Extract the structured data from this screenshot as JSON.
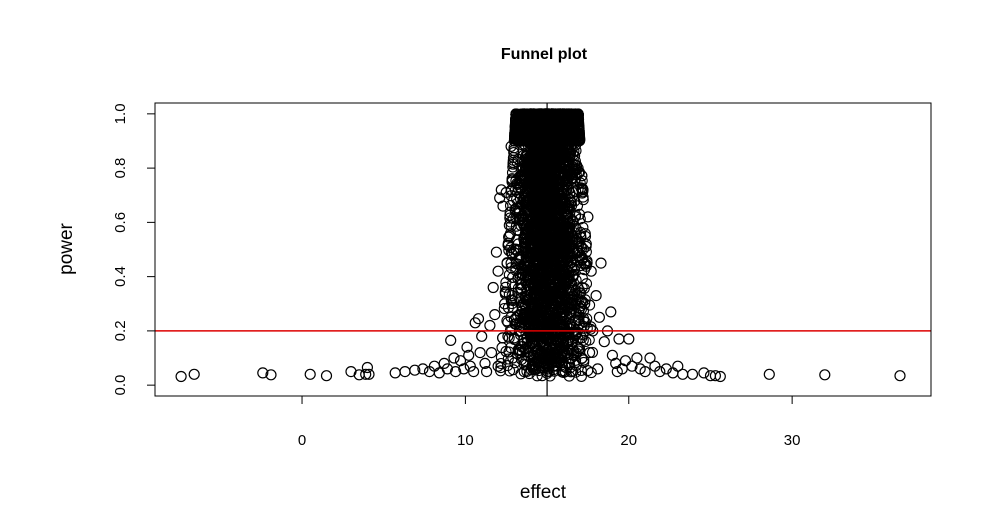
{
  "chart_data": {
    "type": "scatter",
    "title": "Funnel plot",
    "xlabel": "effect",
    "ylabel": "power",
    "xlim": [
      -9.0,
      38.5
    ],
    "ylim": [
      -0.04,
      1.04
    ],
    "x_ticks": [
      0,
      10,
      20,
      30
    ],
    "y_ticks": [
      0.0,
      0.2,
      0.4,
      0.6,
      0.8,
      1.0
    ],
    "x_tick_labels": [
      "0",
      "10",
      "20",
      "30"
    ],
    "y_tick_labels": [
      "0.0",
      "0.2",
      "0.4",
      "0.6",
      "0.8",
      "1.0"
    ],
    "grid": false,
    "legend": null,
    "marker": "open-circle",
    "marker_color": "#000000",
    "vertical_reference_line": {
      "x": 15,
      "color": "#000000"
    },
    "horizontal_reference_line": {
      "y": 0.2,
      "color": "#dd0000"
    },
    "series": [
      {
        "points": [
          [
            -7.4,
            0.032
          ],
          [
            -6.6,
            0.04
          ],
          [
            -2.4,
            0.045
          ],
          [
            -1.9,
            0.038
          ],
          [
            0.5,
            0.04
          ],
          [
            1.5,
            0.035
          ],
          [
            3.0,
            0.05
          ],
          [
            3.5,
            0.038
          ],
          [
            3.9,
            0.04
          ],
          [
            4.0,
            0.065
          ],
          [
            4.1,
            0.04
          ],
          [
            5.7,
            0.045
          ],
          [
            6.3,
            0.05
          ],
          [
            6.9,
            0.055
          ],
          [
            7.4,
            0.06
          ],
          [
            7.8,
            0.05
          ],
          [
            8.1,
            0.07
          ],
          [
            8.4,
            0.045
          ],
          [
            8.7,
            0.08
          ],
          [
            8.9,
            0.06
          ],
          [
            9.1,
            0.165
          ],
          [
            9.3,
            0.1
          ],
          [
            9.4,
            0.05
          ],
          [
            9.7,
            0.09
          ],
          [
            9.9,
            0.06
          ],
          [
            10.1,
            0.14
          ],
          [
            10.2,
            0.11
          ],
          [
            10.3,
            0.07
          ],
          [
            10.5,
            0.05
          ],
          [
            10.6,
            0.23
          ],
          [
            10.8,
            0.245
          ],
          [
            10.9,
            0.12
          ],
          [
            11.0,
            0.18
          ],
          [
            11.2,
            0.08
          ],
          [
            11.3,
            0.05
          ],
          [
            11.5,
            0.22
          ],
          [
            11.6,
            0.12
          ],
          [
            11.7,
            0.36
          ],
          [
            11.8,
            0.26
          ],
          [
            11.9,
            0.49
          ],
          [
            12.0,
            0.42
          ],
          [
            12.0,
            0.07
          ],
          [
            12.1,
            0.69
          ],
          [
            12.2,
            0.72
          ],
          [
            12.3,
            0.66
          ],
          [
            12.4,
            0.3
          ],
          [
            12.5,
            0.71
          ],
          [
            12.6,
            0.18
          ],
          [
            12.7,
            0.55
          ],
          [
            12.8,
            0.88
          ],
          [
            12.8,
            0.45
          ],
          [
            12.9,
            0.1
          ],
          [
            13.0,
            0.24
          ],
          [
            13.1,
            0.64
          ],
          [
            13.2,
            0.74
          ],
          [
            13.3,
            0.12
          ],
          [
            13.4,
            0.37
          ],
          [
            13.6,
            0.05
          ],
          [
            13.8,
            0.16
          ],
          [
            17.2,
            0.72
          ],
          [
            17.3,
            0.3
          ],
          [
            17.4,
            0.52
          ],
          [
            17.5,
            0.62
          ],
          [
            17.6,
            0.12
          ],
          [
            17.7,
            0.42
          ],
          [
            17.8,
            0.2
          ],
          [
            18.0,
            0.33
          ],
          [
            18.1,
            0.06
          ],
          [
            18.2,
            0.25
          ],
          [
            18.3,
            0.45
          ],
          [
            18.5,
            0.16
          ],
          [
            18.7,
            0.2
          ],
          [
            18.9,
            0.27
          ],
          [
            19.0,
            0.11
          ],
          [
            19.2,
            0.08
          ],
          [
            19.3,
            0.05
          ],
          [
            19.4,
            0.17
          ],
          [
            19.6,
            0.06
          ],
          [
            19.8,
            0.09
          ],
          [
            20.0,
            0.17
          ],
          [
            20.2,
            0.07
          ],
          [
            20.5,
            0.1
          ],
          [
            20.7,
            0.06
          ],
          [
            21.0,
            0.05
          ],
          [
            21.3,
            0.1
          ],
          [
            21.6,
            0.07
          ],
          [
            21.9,
            0.05
          ],
          [
            22.3,
            0.06
          ],
          [
            22.7,
            0.045
          ],
          [
            23.0,
            0.07
          ],
          [
            23.3,
            0.04
          ],
          [
            23.9,
            0.04
          ],
          [
            24.6,
            0.045
          ],
          [
            25.0,
            0.035
          ],
          [
            25.3,
            0.035
          ],
          [
            25.6,
            0.032
          ],
          [
            28.6,
            0.04
          ],
          [
            32.0,
            0.038
          ],
          [
            36.6,
            0.035
          ]
        ],
        "dense_core": {
          "x_center": 15.0,
          "approximate_n": 6000,
          "x_spread_at_power_1": 1.9,
          "x_spread_at_power_0": 2.9,
          "power_range": [
            0.03,
            1.0
          ]
        }
      }
    ]
  }
}
